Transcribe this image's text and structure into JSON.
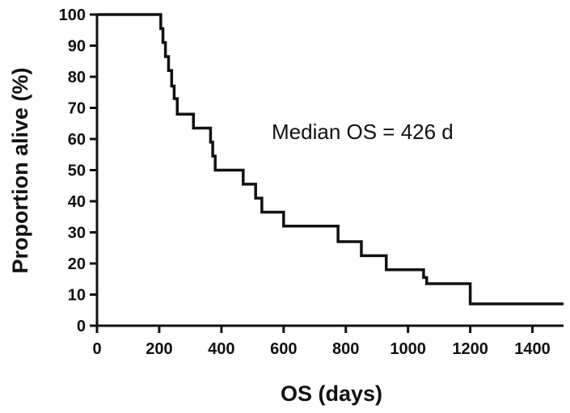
{
  "chart_data": {
    "type": "line",
    "title": "",
    "xlabel": "OS (days)",
    "ylabel": "Proportion alive (%)",
    "xlim": [
      0,
      1500
    ],
    "ylim": [
      0,
      100
    ],
    "x_ticks": [
      0,
      200,
      400,
      600,
      800,
      1000,
      1200,
      1400
    ],
    "y_ticks": [
      0,
      10,
      20,
      30,
      40,
      50,
      60,
      70,
      80,
      90,
      100
    ],
    "grid": false,
    "legend": "none",
    "annotation": "Median OS = 426 d",
    "line_color": "#111111",
    "series": [
      {
        "x": [
          0,
          205,
          212,
          220,
          230,
          240,
          248,
          258,
          310,
          365,
          372,
          380,
          470,
          510,
          530,
          600,
          775,
          850,
          930,
          1050,
          1060,
          1200,
          1500
        ],
        "y": [
          100,
          95.5,
          91,
          86.5,
          82,
          77,
          73,
          68,
          63.5,
          59,
          54.5,
          50,
          45.5,
          41,
          36.5,
          32,
          27,
          22.5,
          18,
          15.5,
          13.5,
          7,
          7
        ]
      }
    ]
  }
}
